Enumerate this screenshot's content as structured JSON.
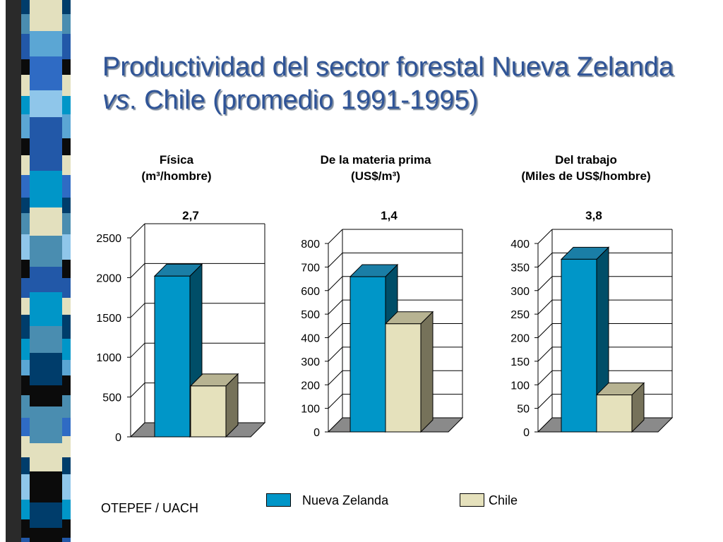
{
  "slide": {
    "title_line1": "Productividad del sector forestal Nueva Zelanda",
    "title_line2": "vs. Chile (promedio 1991-1995)",
    "source": "OTEPEF / UACH"
  },
  "legend": {
    "items": [
      {
        "label": "Nueva Zelanda",
        "color": "#0096C8"
      },
      {
        "label": "Chile",
        "color": "#E5E1BC"
      }
    ]
  },
  "chart_data": [
    {
      "type": "bar",
      "title_line1": "Física",
      "title_line2": "(m³/hombre)",
      "ratio_label": "2,7",
      "categories": [
        "Nueva Zelanda",
        "Chile"
      ],
      "values": [
        2170,
        790
      ],
      "ylim": [
        0,
        2500
      ],
      "ticks": [
        0,
        500,
        1000,
        1500,
        2000,
        2500
      ],
      "grid": true
    },
    {
      "type": "bar",
      "title_line1": "De la materia prima",
      "title_line2": "(US$/m³)",
      "ratio_label": "1,4",
      "categories": [
        "Nueva Zelanda",
        "Chile"
      ],
      "values": [
        710,
        510
      ],
      "ylim": [
        0,
        800
      ],
      "ticks": [
        0,
        100,
        200,
        300,
        400,
        500,
        600,
        700,
        800
      ],
      "grid": true
    },
    {
      "type": "bar",
      "title_line1": "Del trabajo",
      "title_line2": "(Miles de US$/hombre)",
      "ratio_label": "3,8",
      "categories": [
        "Nueva Zelanda",
        "Chile"
      ],
      "values": [
        392,
        104
      ],
      "ylim": [
        0,
        400
      ],
      "ticks": [
        0,
        50,
        100,
        150,
        200,
        250,
        300,
        350,
        400
      ],
      "grid": true
    }
  ],
  "colors": {
    "nz_front": "#0096C8",
    "nz_top": "#1A7EA6",
    "nz_side": "#004E68",
    "cl_front": "#E5E1BC",
    "cl_top": "#B7B392",
    "cl_side": "#76725A",
    "floor": "#8A8A8A"
  }
}
